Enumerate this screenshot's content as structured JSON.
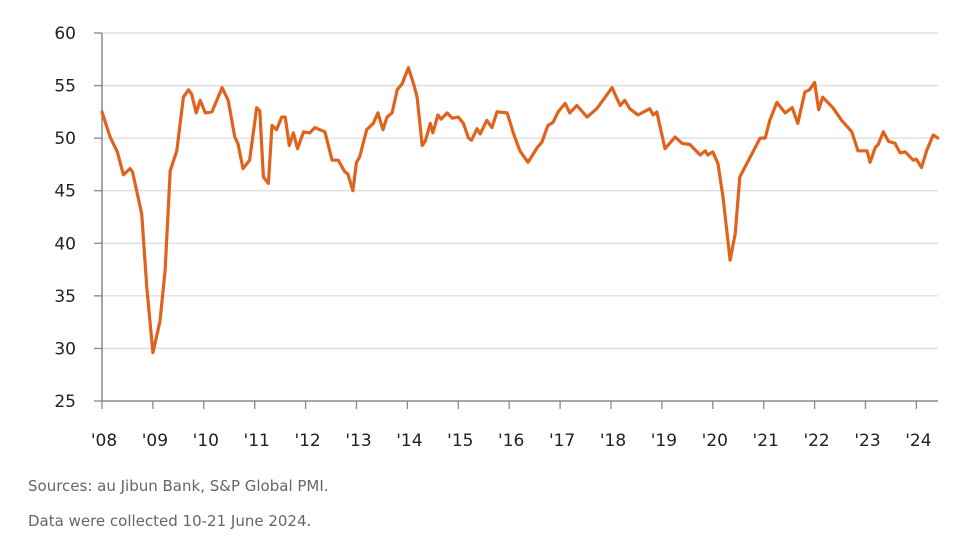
{
  "chart_data": {
    "type": "line",
    "title": "",
    "xlabel": "",
    "ylabel": "",
    "ylim": [
      25,
      60
    ],
    "xlim": [
      2008,
      2024.45
    ],
    "yticks": [
      25,
      30,
      35,
      40,
      45,
      50,
      55,
      60
    ],
    "xticks": [
      {
        "value": 2008,
        "label": "'08"
      },
      {
        "value": 2009,
        "label": "'09"
      },
      {
        "value": 2010,
        "label": "'10"
      },
      {
        "value": 2011,
        "label": "'11"
      },
      {
        "value": 2012,
        "label": "'12"
      },
      {
        "value": 2013,
        "label": "'13"
      },
      {
        "value": 2014,
        "label": "'14"
      },
      {
        "value": 2015,
        "label": "'15"
      },
      {
        "value": 2016,
        "label": "'16"
      },
      {
        "value": 2017,
        "label": "'17"
      },
      {
        "value": 2018,
        "label": "'18"
      },
      {
        "value": 2019,
        "label": "'19"
      },
      {
        "value": 2020,
        "label": "'20"
      },
      {
        "value": 2021,
        "label": "'21"
      },
      {
        "value": 2022,
        "label": "'22"
      },
      {
        "value": 2023,
        "label": "'23"
      },
      {
        "value": 2024,
        "label": "'24"
      }
    ],
    "grid": "horizontal",
    "line_color": "#e0631d",
    "x": [
      2008.0,
      2008.16,
      2008.3,
      2008.42,
      2008.55,
      2008.6,
      2008.78,
      2008.88,
      2009.0,
      2009.14,
      2009.24,
      2009.34,
      2009.47,
      2009.6,
      2009.7,
      2009.76,
      2009.85,
      2009.93,
      2010.03,
      2010.16,
      2010.36,
      2010.48,
      2010.61,
      2010.67,
      2010.77,
      2010.9,
      2011.04,
      2011.1,
      2011.17,
      2011.27,
      2011.34,
      2011.43,
      2011.53,
      2011.6,
      2011.68,
      2011.76,
      2011.84,
      2011.96,
      2012.08,
      2012.18,
      2012.38,
      2012.52,
      2012.64,
      2012.77,
      2012.83,
      2012.93,
      2013.0,
      2013.06,
      2013.2,
      2013.33,
      2013.42,
      2013.52,
      2013.6,
      2013.7,
      2013.8,
      2013.9,
      2014.02,
      2014.12,
      2014.19,
      2014.29,
      2014.35,
      2014.45,
      2014.5,
      2014.6,
      2014.66,
      2014.78,
      2014.88,
      2015.0,
      2015.1,
      2015.2,
      2015.26,
      2015.37,
      2015.43,
      2015.56,
      2015.66,
      2015.76,
      2015.96,
      2016.08,
      2016.21,
      2016.37,
      2016.55,
      2016.64,
      2016.76,
      2016.86,
      2016.96,
      2017.1,
      2017.19,
      2017.33,
      2017.53,
      2017.72,
      2017.84,
      2018.02,
      2018.18,
      2018.27,
      2018.37,
      2018.53,
      2018.76,
      2018.83,
      2018.9,
      2019.06,
      2019.26,
      2019.4,
      2019.55,
      2019.75,
      2019.85,
      2019.9,
      2020.0,
      2020.1,
      2020.2,
      2020.34,
      2020.44,
      2020.53,
      2020.67,
      2020.79,
      2020.93,
      2021.03,
      2021.12,
      2021.26,
      2021.42,
      2021.56,
      2021.67,
      2021.81,
      2021.9,
      2022.0,
      2022.08,
      2022.16,
      2022.36,
      2022.53,
      2022.73,
      2022.85,
      2023.03,
      2023.09,
      2023.19,
      2023.25,
      2023.35,
      2023.45,
      2023.58,
      2023.68,
      2023.78,
      2023.94,
      2024.0,
      2024.1,
      2024.2,
      2024.33,
      2024.42
    ],
    "y": [
      52.5,
      50.1,
      48.7,
      46.5,
      47.1,
      46.8,
      42.8,
      35.8,
      29.6,
      32.6,
      37.4,
      46.9,
      48.8,
      53.9,
      54.6,
      54.2,
      52.4,
      53.6,
      52.4,
      52.5,
      54.8,
      53.6,
      50.1,
      49.5,
      47.1,
      47.9,
      52.9,
      52.6,
      46.3,
      45.7,
      51.2,
      50.8,
      52.0,
      52.0,
      49.3,
      50.5,
      49.0,
      50.6,
      50.5,
      51.0,
      50.6,
      47.9,
      47.9,
      46.8,
      46.6,
      45.0,
      47.7,
      48.2,
      50.8,
      51.4,
      52.4,
      50.8,
      52.0,
      52.4,
      54.6,
      55.2,
      56.7,
      55.2,
      53.9,
      49.3,
      49.7,
      51.4,
      50.5,
      52.2,
      51.8,
      52.4,
      51.9,
      52.0,
      51.4,
      50.0,
      49.8,
      50.9,
      50.4,
      51.7,
      51.0,
      52.5,
      52.4,
      50.5,
      48.8,
      47.7,
      49.1,
      49.6,
      51.2,
      51.5,
      52.5,
      53.3,
      52.4,
      53.1,
      52.0,
      52.8,
      53.6,
      54.8,
      53.1,
      53.6,
      52.8,
      52.2,
      52.8,
      52.2,
      52.5,
      49.0,
      50.1,
      49.5,
      49.4,
      48.4,
      48.8,
      48.4,
      48.7,
      47.6,
      44.4,
      38.4,
      40.9,
      46.3,
      47.6,
      48.7,
      50.0,
      50.0,
      51.7,
      53.4,
      52.4,
      52.9,
      51.4,
      54.4,
      54.6,
      55.3,
      52.7,
      53.9,
      52.9,
      51.7,
      50.6,
      48.8,
      48.8,
      47.7,
      49.1,
      49.4,
      50.6,
      49.7,
      49.5,
      48.6,
      48.7,
      47.9,
      48.0,
      47.2,
      48.8,
      50.3,
      50.0
    ]
  },
  "footnotes": {
    "sources": "Sources: au Jibun Bank, S&P Global PMI.",
    "collected": "Data were collected 10-21 June 2024."
  }
}
